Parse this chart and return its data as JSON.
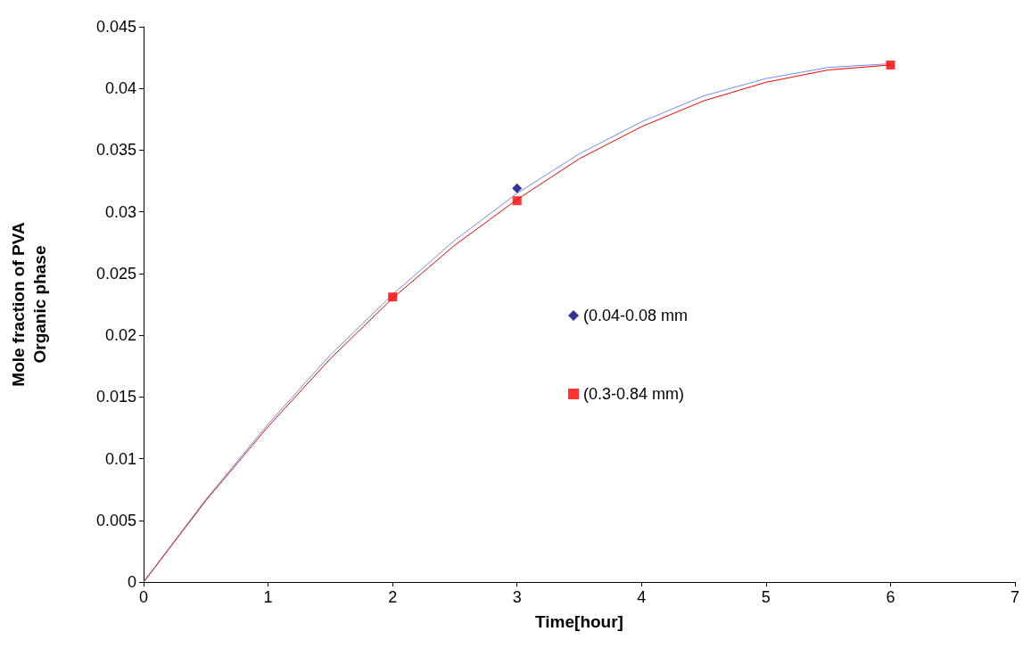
{
  "chart_data": {
    "type": "scatter",
    "xlabel": "Time[hour]",
    "ylabel": "Mole fraction of PVA\nOrganic phase",
    "xlim": [
      0,
      7
    ],
    "xticks": [
      0,
      1,
      2,
      3,
      4,
      5,
      6,
      7
    ],
    "ylim": [
      0,
      0.045
    ],
    "yticks": [
      0,
      0.005,
      0.01,
      0.015,
      0.02,
      0.025,
      0.03,
      0.035,
      0.04,
      0.045
    ],
    "grid": false,
    "legend": "right",
    "series": [
      {
        "name": "(0.04-0.08 mm",
        "color": "#000080",
        "marker": "diamond",
        "x": [
          3
        ],
        "values": [
          0.0319
        ]
      },
      {
        "name": "(0.3-0.84 mm)",
        "color": "#ff0000",
        "marker": "square",
        "x": [
          2,
          3,
          6
        ],
        "values": [
          0.0231,
          0.0309,
          0.0419
        ]
      },
      {
        "type": "line",
        "color": "#6f8cff",
        "marker": "none",
        "x": [
          0,
          0.5,
          1,
          1.5,
          2,
          2.5,
          3,
          3.5,
          4,
          4.5,
          5,
          5.5,
          6
        ],
        "values": [
          0,
          0.0067,
          0.0128,
          0.0184,
          0.0233,
          0.0277,
          0.0315,
          0.0347,
          0.0373,
          0.0394,
          0.0408,
          0.0417,
          0.042
        ]
      },
      {
        "type": "line",
        "color": "#ff0000",
        "marker": "none",
        "x": [
          0,
          0.5,
          1,
          1.5,
          2,
          2.5,
          3,
          3.5,
          4,
          4.5,
          5,
          5.5,
          6
        ],
        "values": [
          0,
          0.0066,
          0.0126,
          0.0181,
          0.023,
          0.0273,
          0.031,
          0.0343,
          0.0369,
          0.039,
          0.0405,
          0.0415,
          0.0419
        ]
      }
    ]
  }
}
